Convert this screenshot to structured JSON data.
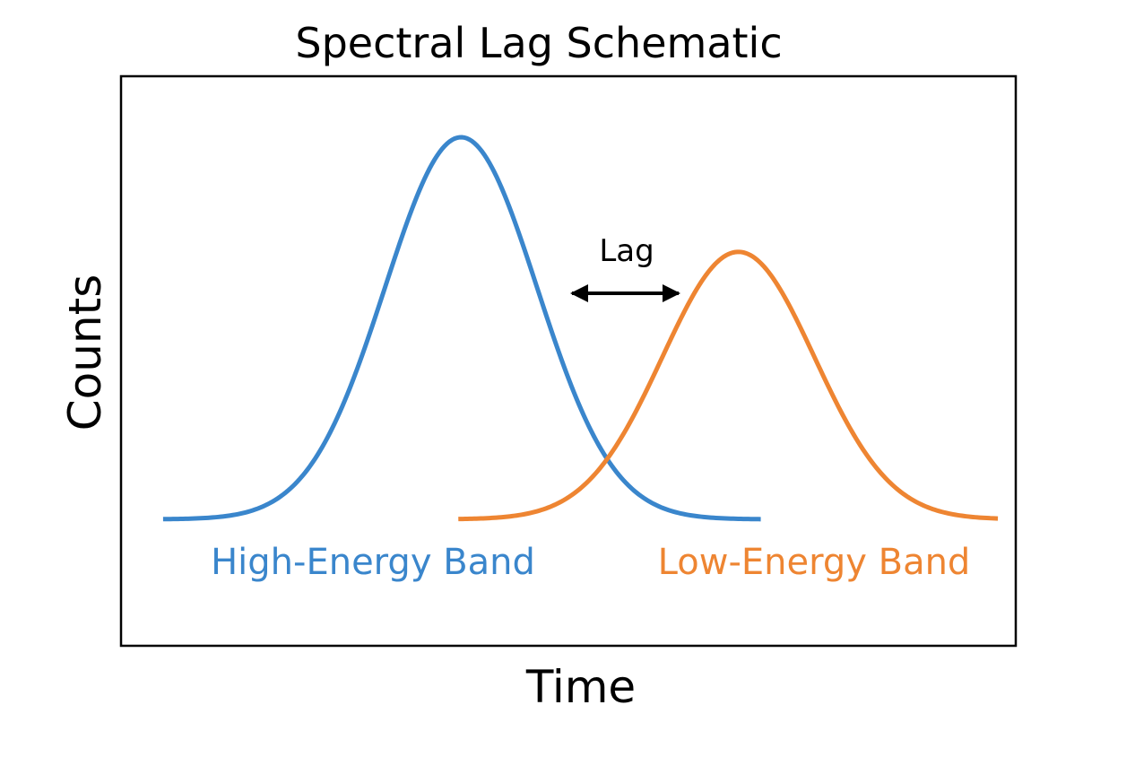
{
  "title": "Spectral Lag Schematic",
  "xlabel": "Time",
  "ylabel": "Counts",
  "annotation": {
    "label": "Lag",
    "color": "#000000"
  },
  "bands": [
    {
      "name": "High-Energy Band",
      "color": "#3a86cc",
      "peak_x": 0.38,
      "sigma": 0.085,
      "amplitude": 1.0,
      "x_start": 0.047,
      "x_end": 0.715
    },
    {
      "name": "Low-Energy Band",
      "color": "#ee8532",
      "peak_x": 0.69,
      "sigma": 0.085,
      "amplitude": 0.7,
      "x_start": 0.377,
      "x_end": 0.98
    }
  ]
}
